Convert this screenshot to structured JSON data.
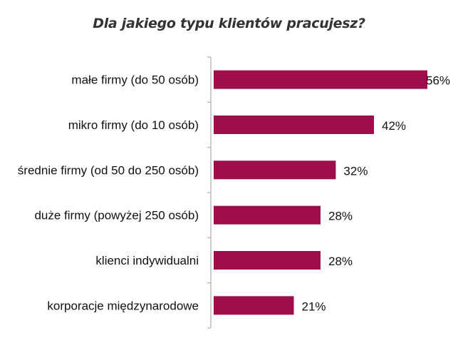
{
  "chart_data": {
    "type": "bar",
    "orientation": "horizontal",
    "title": "Dla jakiego typu klientów pracujesz?",
    "categories": [
      "małe firmy (do 50 osób)",
      "mikro firmy (do 10 osób)",
      "średnie firmy (od 50 do 250 osób)",
      "duże firmy (powyżej 250 osób)",
      "klienci indywidualni",
      "korporacje międzynarodowe"
    ],
    "values": [
      56,
      42,
      32,
      28,
      28,
      21
    ],
    "value_labels": [
      "56%",
      "42%",
      "32%",
      "28%",
      "28%",
      "21%"
    ],
    "xlim": [
      0,
      56
    ],
    "grid": false,
    "legend": "none",
    "bar_color": "#9e0e4a"
  }
}
